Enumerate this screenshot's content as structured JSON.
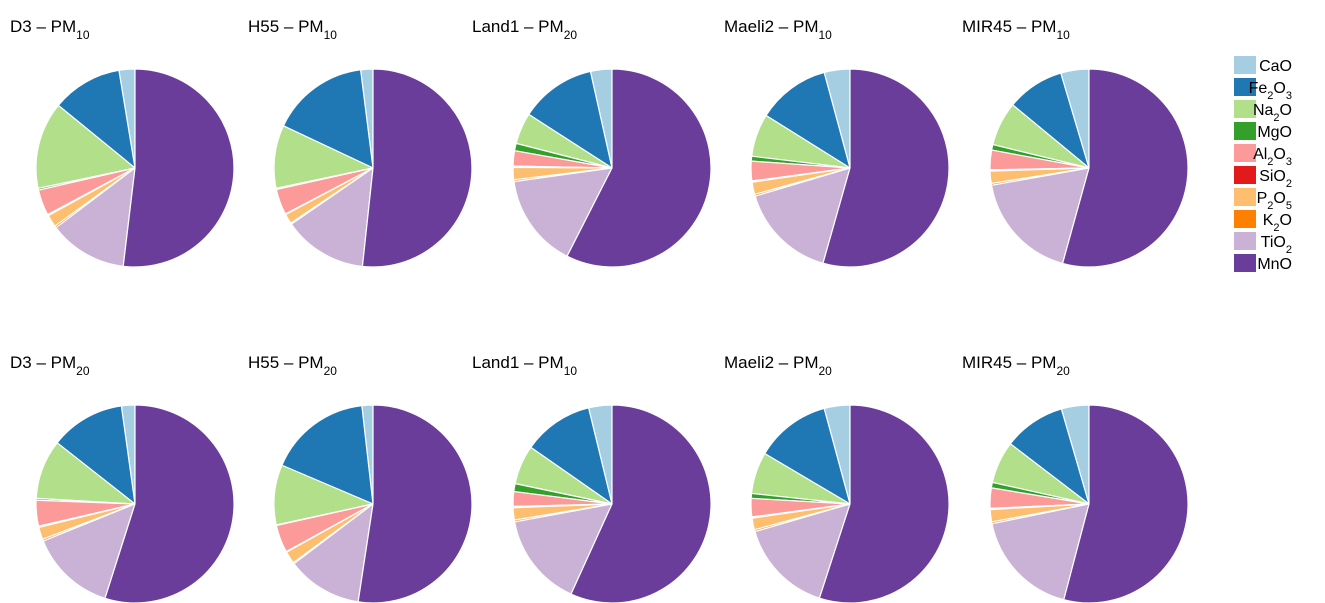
{
  "legend": [
    {
      "name": "CaO",
      "base": "CaO",
      "parts": [
        [
          "CaO",
          false
        ]
      ],
      "color": "#a6cee3"
    },
    {
      "name": "Fe2O3",
      "base": "Fe",
      "parts": [
        [
          "Fe",
          false
        ],
        [
          "2",
          true
        ],
        [
          "O",
          false
        ],
        [
          "3",
          true
        ]
      ],
      "color": "#1f78b4"
    },
    {
      "name": "Na2O",
      "base": "Na",
      "parts": [
        [
          "Na",
          false
        ],
        [
          "2",
          true
        ],
        [
          "O",
          false
        ]
      ],
      "color": "#b2df8a"
    },
    {
      "name": "MgO",
      "base": "MgO",
      "parts": [
        [
          "MgO",
          false
        ]
      ],
      "color": "#33a02c"
    },
    {
      "name": "Al2O3",
      "base": "Al",
      "parts": [
        [
          "Al",
          false
        ],
        [
          "2",
          true
        ],
        [
          "O",
          false
        ],
        [
          "3",
          true
        ]
      ],
      "color": "#fb9a99"
    },
    {
      "name": "SiO2",
      "base": "SiO",
      "parts": [
        [
          "SiO",
          false
        ],
        [
          "2",
          true
        ]
      ],
      "color": "#e31a1c"
    },
    {
      "name": "P2O5",
      "base": "P",
      "parts": [
        [
          "P",
          false
        ],
        [
          "2",
          true
        ],
        [
          "O",
          false
        ],
        [
          "5",
          true
        ]
      ],
      "color": "#fdbf6f"
    },
    {
      "name": "K2O",
      "base": "K",
      "parts": [
        [
          "K",
          false
        ],
        [
          "2",
          true
        ],
        [
          "O",
          false
        ]
      ],
      "color": "#ff7f00"
    },
    {
      "name": "TiO2",
      "base": "TiO",
      "parts": [
        [
          "TiO",
          false
        ],
        [
          "2",
          true
        ]
      ],
      "color": "#cab2d6"
    },
    {
      "name": "MnO",
      "base": "MnO",
      "parts": [
        [
          "MnO",
          false
        ]
      ],
      "color": "#6a3d9a"
    }
  ],
  "chart_data": [
    {
      "type": "pie",
      "title": "D3 – PM10",
      "title_main": "D3 – PM",
      "title_sub": "10",
      "series": [
        "CaO",
        "Fe2O3",
        "Na2O",
        "MgO",
        "Al2O3",
        "SiO2",
        "P2O5",
        "K2O",
        "TiO2",
        "MnO"
      ],
      "values": [
        2.6,
        11.5,
        14.2,
        0.3,
        4.2,
        0.2,
        2.0,
        0.3,
        12.8,
        51.9
      ]
    },
    {
      "type": "pie",
      "title": "H55 – PM10",
      "title_main": "H55 – PM",
      "title_sub": "10",
      "series": [
        "CaO",
        "Fe2O3",
        "Na2O",
        "MgO",
        "Al2O3",
        "SiO2",
        "P2O5",
        "K2O",
        "TiO2",
        "MnO"
      ],
      "values": [
        2.0,
        16.0,
        10.3,
        0.2,
        4.2,
        0.1,
        1.6,
        0.2,
        13.7,
        51.7
      ]
    },
    {
      "type": "pie",
      "title": "Land1 – PM20",
      "title_main": "Land1 – PM",
      "title_sub": "20",
      "series": [
        "CaO",
        "Fe2O3",
        "Na2O",
        "MgO",
        "Al2O3",
        "SiO2",
        "P2O5",
        "K2O",
        "TiO2",
        "MnO"
      ],
      "values": [
        3.5,
        12.4,
        5.1,
        1.2,
        2.5,
        0.2,
        2.0,
        0.3,
        15.3,
        57.5
      ]
    },
    {
      "type": "pie",
      "title": "Maeli2 – PM10",
      "title_main": "Maeli2 – PM",
      "title_sub": "10",
      "series": [
        "CaO",
        "Fe2O3",
        "Na2O",
        "MgO",
        "Al2O3",
        "SiO2",
        "P2O5",
        "K2O",
        "TiO2",
        "MnO"
      ],
      "values": [
        4.2,
        11.9,
        7.0,
        0.8,
        3.2,
        0.2,
        2.0,
        0.3,
        16.0,
        54.4
      ]
    },
    {
      "type": "pie",
      "title": "MIR45 – PM10",
      "title_main": "MIR45 – PM",
      "title_sub": "10",
      "series": [
        "CaO",
        "Fe2O3",
        "Na2O",
        "MgO",
        "Al2O3",
        "SiO2",
        "P2O5",
        "K2O",
        "TiO2",
        "MnO"
      ],
      "values": [
        4.6,
        9.4,
        7.2,
        0.9,
        3.2,
        0.2,
        2.0,
        0.3,
        17.9,
        54.3
      ]
    },
    {
      "type": "pie",
      "title": "D3 – PM20",
      "title_main": "D3 – PM",
      "title_sub": "20",
      "series": [
        "CaO",
        "Fe2O3",
        "Na2O",
        "MgO",
        "Al2O3",
        "SiO2",
        "P2O5",
        "K2O",
        "TiO2",
        "MnO"
      ],
      "values": [
        2.2,
        12.2,
        9.7,
        0.3,
        4.2,
        0.2,
        2.0,
        0.3,
        14.0,
        54.9
      ]
    },
    {
      "type": "pie",
      "title": "H55 – PM20",
      "title_main": "H55 – PM",
      "title_sub": "20",
      "series": [
        "CaO",
        "Fe2O3",
        "Na2O",
        "MgO",
        "Al2O3",
        "SiO2",
        "P2O5",
        "K2O",
        "TiO2",
        "MnO"
      ],
      "values": [
        1.8,
        16.8,
        9.8,
        0.1,
        4.5,
        0.1,
        2.0,
        0.2,
        12.3,
        52.4
      ]
    },
    {
      "type": "pie",
      "title": "Land1 – PM10",
      "title_main": "Land1 – PM",
      "title_sub": "10",
      "series": [
        "CaO",
        "Fe2O3",
        "Na2O",
        "MgO",
        "Al2O3",
        "SiO2",
        "P2O5",
        "K2O",
        "TiO2",
        "MnO"
      ],
      "values": [
        3.8,
        11.5,
        6.4,
        1.3,
        2.4,
        0.2,
        2.0,
        0.3,
        15.3,
        56.8
      ]
    },
    {
      "type": "pie",
      "title": "Maeli2 – PM20",
      "title_main": "Maeli2 – PM",
      "title_sub": "20",
      "series": [
        "CaO",
        "Fe2O3",
        "Na2O",
        "MgO",
        "Al2O3",
        "SiO2",
        "P2O5",
        "K2O",
        "TiO2",
        "MnO"
      ],
      "values": [
        4.2,
        12.3,
        6.8,
        0.8,
        3.0,
        0.2,
        1.9,
        0.3,
        15.5,
        55.0
      ]
    },
    {
      "type": "pie",
      "title": "MIR45 – PM20",
      "title_main": "MIR45 – PM",
      "title_sub": "20",
      "series": [
        "CaO",
        "Fe2O3",
        "Na2O",
        "MgO",
        "Al2O3",
        "SiO2",
        "P2O5",
        "K2O",
        "TiO2",
        "MnO"
      ],
      "values": [
        4.5,
        10.1,
        6.9,
        0.9,
        3.3,
        0.2,
        2.0,
        0.3,
        17.7,
        54.1
      ]
    }
  ]
}
